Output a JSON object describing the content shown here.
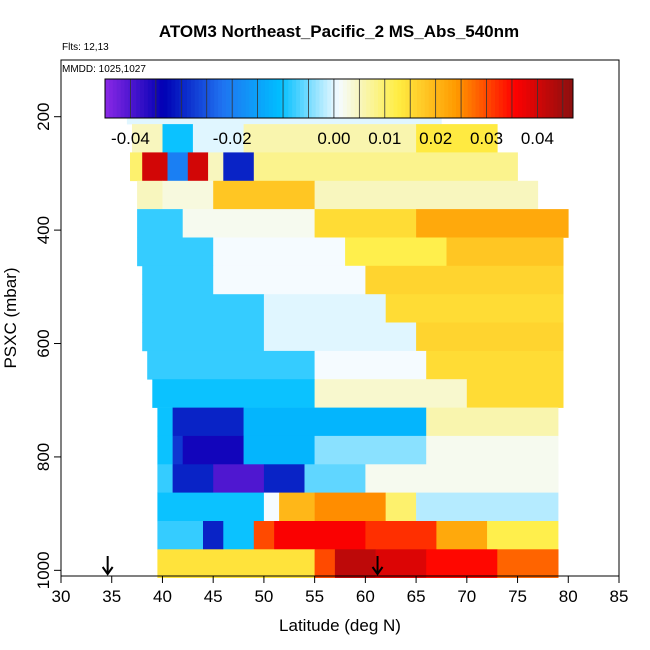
{
  "chart_data": {
    "type": "heatmap",
    "title": "ATOM3 Northeast_Pacific_2 MS_Abs_540nm",
    "annotations": [
      "Flts: 12,13",
      "MMDD: 1025,1027"
    ],
    "xlabel": "Latitude (deg N)",
    "ylabel": "PSXC (mbar)",
    "xlim": [
      30,
      85
    ],
    "ylim": [
      1010,
      100
    ],
    "x_ticks": [
      "30",
      "35",
      "40",
      "45",
      "50",
      "55",
      "60",
      "65",
      "70",
      "75",
      "80",
      "85"
    ],
    "y_ticks": [
      "200",
      "400",
      "600",
      "800",
      "1000"
    ],
    "colorbar": {
      "range": [
        -0.045,
        0.047
      ],
      "tick_labels": [
        "-0.04",
        "-0.02",
        "0.00",
        "0.01",
        "0.02",
        "0.03",
        "0.04"
      ],
      "tick_values": [
        -0.04,
        -0.02,
        0.0,
        0.01,
        0.02,
        0.03,
        0.04
      ],
      "colors": [
        "#8b28e6",
        "#0000b4",
        "#1f72f0",
        "#00bfff",
        "#f5fbff",
        "#ffee44",
        "#ff9a00",
        "#ff0000",
        "#8b1010"
      ]
    },
    "arrows_lat": [
      34.6,
      61.2
    ],
    "pressure_bands": [
      {
        "p_top": 163,
        "p_bottom": 213,
        "segments": [
          [
            36.5,
            67.5,
            0.0
          ]
        ]
      },
      {
        "p_top": 213,
        "p_bottom": 263,
        "segments": [
          [
            37.0,
            40.0,
            0.005
          ],
          [
            40.0,
            43.0,
            -0.01
          ],
          [
            43.0,
            48.0,
            0.0
          ],
          [
            48.0,
            65.0,
            0.006
          ],
          [
            65.0,
            73.0,
            0.013
          ]
        ]
      },
      {
        "p_top": 263,
        "p_bottom": 313,
        "segments": [
          [
            36.8,
            38.0,
            0.01
          ],
          [
            38.0,
            40.5,
            0.04
          ],
          [
            40.5,
            42.5,
            -0.02
          ],
          [
            42.5,
            44.5,
            0.04
          ],
          [
            44.5,
            46.0,
            0.005
          ],
          [
            46.0,
            49.0,
            -0.03
          ],
          [
            49.0,
            75.0,
            0.008
          ]
        ]
      },
      {
        "p_top": 313,
        "p_bottom": 363,
        "segments": [
          [
            37.5,
            40.0,
            0.005
          ],
          [
            40.0,
            45.0,
            0.003
          ],
          [
            45.0,
            55.0,
            0.018
          ],
          [
            55.0,
            77.0,
            0.005
          ]
        ]
      },
      {
        "p_top": 363,
        "p_bottom": 413,
        "segments": [
          [
            37.5,
            42.0,
            -0.008
          ],
          [
            42.0,
            55.0,
            0.002
          ],
          [
            55.0,
            65.0,
            0.015
          ],
          [
            65.0,
            80.0,
            0.022
          ]
        ]
      },
      {
        "p_top": 413,
        "p_bottom": 463,
        "segments": [
          [
            37.5,
            45.0,
            -0.008
          ],
          [
            45.0,
            58.0,
            0.001
          ],
          [
            58.0,
            68.0,
            0.012
          ],
          [
            68.0,
            79.5,
            0.018
          ]
        ]
      },
      {
        "p_top": 463,
        "p_bottom": 513,
        "segments": [
          [
            38.0,
            45.0,
            -0.008
          ],
          [
            45.0,
            60.0,
            0.001
          ],
          [
            60.0,
            79.5,
            0.016
          ]
        ]
      },
      {
        "p_top": 513,
        "p_bottom": 563,
        "segments": [
          [
            38.0,
            50.0,
            -0.008
          ],
          [
            50.0,
            62.0,
            0.0
          ],
          [
            62.0,
            79.5,
            0.015
          ]
        ]
      },
      {
        "p_top": 563,
        "p_bottom": 613,
        "segments": [
          [
            38.0,
            50.0,
            -0.008
          ],
          [
            50.0,
            65.0,
            0.0
          ],
          [
            65.0,
            79.5,
            0.016
          ]
        ]
      },
      {
        "p_top": 613,
        "p_bottom": 663,
        "segments": [
          [
            38.5,
            55.0,
            -0.008
          ],
          [
            55.0,
            66.0,
            0.001
          ],
          [
            66.0,
            79.5,
            0.015
          ]
        ]
      },
      {
        "p_top": 663,
        "p_bottom": 713,
        "segments": [
          [
            39.0,
            55.0,
            -0.01
          ],
          [
            55.0,
            70.0,
            0.004
          ],
          [
            70.0,
            79.5,
            0.015
          ]
        ]
      },
      {
        "p_top": 713,
        "p_bottom": 763,
        "segments": [
          [
            39.5,
            41.0,
            -0.01
          ],
          [
            41.0,
            48.0,
            -0.03
          ],
          [
            48.0,
            66.0,
            -0.012
          ],
          [
            66.0,
            79.0,
            0.006
          ]
        ]
      },
      {
        "p_top": 763,
        "p_bottom": 813,
        "segments": [
          [
            39.5,
            41.0,
            -0.01
          ],
          [
            41.0,
            42.0,
            -0.028
          ],
          [
            42.0,
            48.0,
            -0.035
          ],
          [
            48.0,
            55.0,
            -0.012
          ],
          [
            55.0,
            66.0,
            -0.004
          ],
          [
            66.0,
            79.0,
            0.002
          ]
        ]
      },
      {
        "p_top": 813,
        "p_bottom": 863,
        "segments": [
          [
            39.5,
            41.0,
            -0.008
          ],
          [
            41.0,
            45.0,
            -0.03
          ],
          [
            45.0,
            50.0,
            -0.04
          ],
          [
            50.0,
            54.0,
            -0.03
          ],
          [
            54.0,
            60.0,
            -0.006
          ],
          [
            60.0,
            79.0,
            0.002
          ]
        ]
      },
      {
        "p_top": 863,
        "p_bottom": 913,
        "segments": [
          [
            39.5,
            50.0,
            -0.01
          ],
          [
            50.0,
            51.5,
            0.001
          ],
          [
            51.5,
            55.0,
            0.02
          ],
          [
            55.0,
            62.0,
            0.025
          ],
          [
            62.0,
            65.0,
            0.01
          ],
          [
            65.0,
            79.0,
            -0.002
          ]
        ]
      },
      {
        "p_top": 913,
        "p_bottom": 963,
        "segments": [
          [
            39.5,
            44.0,
            -0.008
          ],
          [
            44.0,
            46.0,
            -0.03
          ],
          [
            46.0,
            49.0,
            -0.01
          ],
          [
            49.0,
            51.0,
            0.03
          ],
          [
            51.0,
            60.0,
            0.036
          ],
          [
            60.0,
            67.0,
            0.032
          ],
          [
            67.0,
            72.0,
            0.022
          ],
          [
            72.0,
            79.0,
            0.012
          ]
        ]
      },
      {
        "p_top": 963,
        "p_bottom": 1013,
        "segments": [
          [
            39.5,
            55.0,
            0.014
          ],
          [
            55.0,
            57.0,
            0.03
          ],
          [
            57.0,
            61.0,
            0.042
          ],
          [
            61.0,
            66.0,
            0.039
          ],
          [
            66.0,
            73.0,
            0.035
          ],
          [
            73.0,
            79.0,
            0.028
          ]
        ]
      }
    ]
  }
}
